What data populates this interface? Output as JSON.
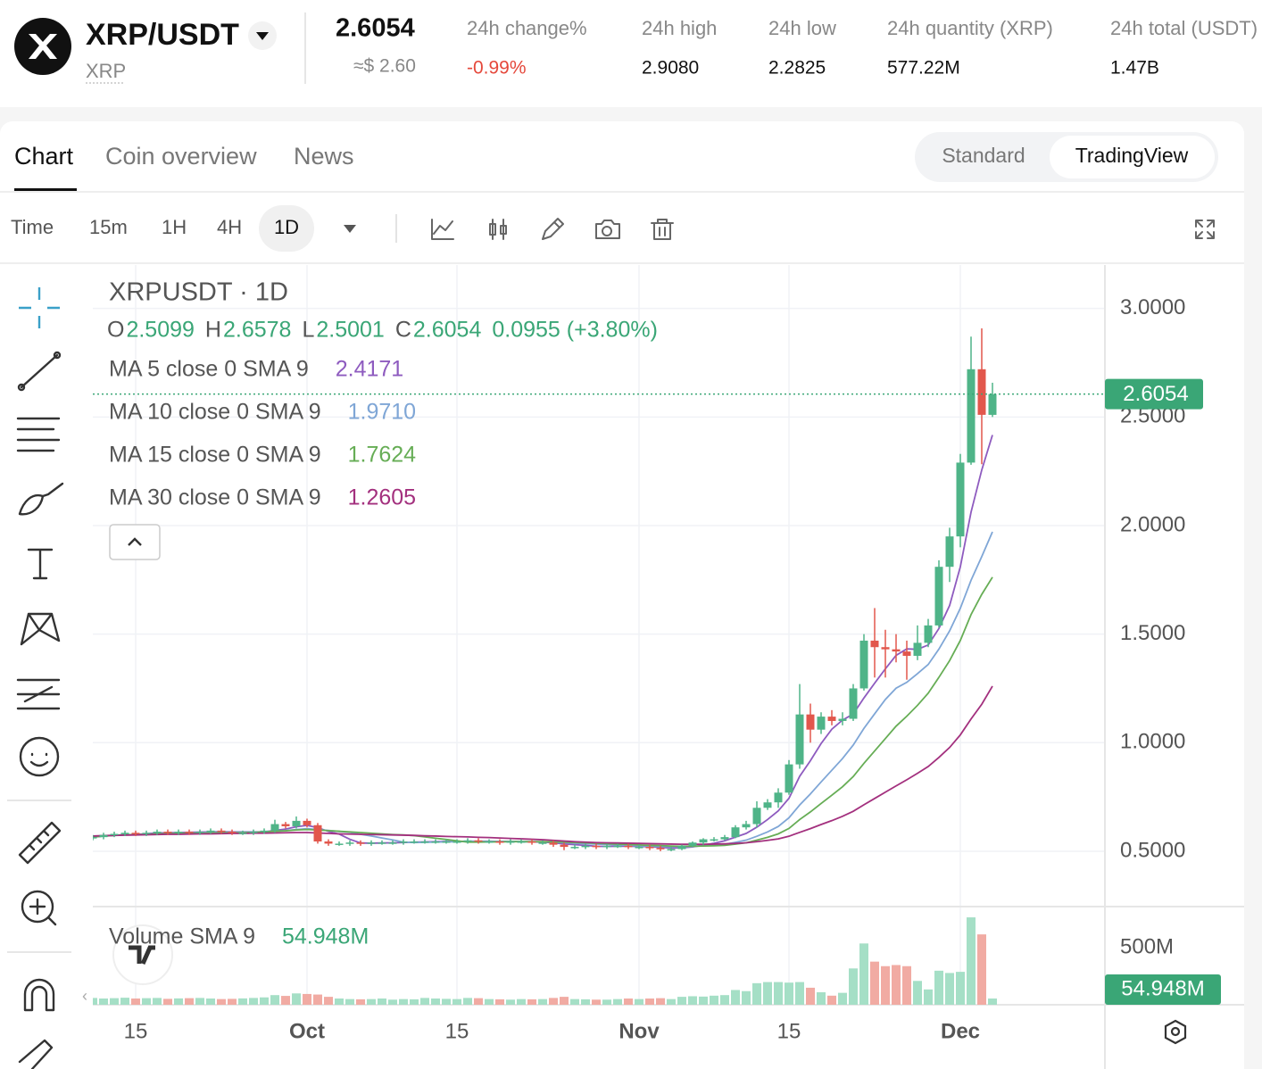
{
  "header": {
    "pair": "XRP/USDT",
    "base": "XRP",
    "price": "2.6054",
    "price_usd": "≈$ 2.60",
    "stats": [
      {
        "label": "24h change%",
        "value": "-0.99%"
      },
      {
        "label": "24h high",
        "value": "2.9080"
      },
      {
        "label": "24h low",
        "value": "2.2825"
      },
      {
        "label": "24h quantity (XRP)",
        "value": "577.22M"
      },
      {
        "label": "24h total (USDT)",
        "value": "1.47B"
      }
    ]
  },
  "tabs": [
    "Chart",
    "Coin overview",
    "News"
  ],
  "modes": [
    "Standard",
    "TradingView"
  ],
  "intervals": [
    "Time",
    "15m",
    "1H",
    "4H",
    "1D"
  ],
  "chart_data": {
    "type": "candlestick",
    "title": "XRPUSDT · 1D",
    "ohlc_letters": [
      "O",
      "H",
      "L",
      "C"
    ],
    "change": "0.0955 (+3.80%)",
    "up_color": "#4fb488",
    "down_color": "#e2574c",
    "categories": [
      null,
      null,
      null,
      null,
      "15",
      null,
      null,
      null,
      null,
      null,
      null,
      null,
      null,
      null,
      null,
      null,
      null,
      null,
      null,
      null,
      "Oct",
      null,
      null,
      null,
      null,
      null,
      null,
      null,
      null,
      null,
      null,
      null,
      null,
      null,
      "15",
      null,
      null,
      null,
      null,
      null,
      null,
      null,
      null,
      null,
      null,
      null,
      null,
      null,
      null,
      null,
      null,
      "Nov",
      null,
      null,
      null,
      null,
      null,
      null,
      null,
      null,
      null,
      null,
      null,
      null,
      null,
      "15",
      null,
      null,
      null,
      null,
      null,
      null,
      null,
      null,
      null,
      null,
      null,
      null,
      null,
      null,
      null,
      "Dec",
      null,
      null,
      null
    ],
    "open": [
      0.56,
      0.565,
      0.575,
      0.58,
      0.585,
      0.58,
      0.585,
      0.59,
      0.585,
      0.59,
      0.585,
      0.59,
      0.595,
      0.59,
      0.585,
      0.585,
      0.59,
      0.595,
      0.625,
      0.615,
      0.64,
      0.62,
      0.545,
      0.535,
      0.535,
      0.54,
      0.535,
      0.54,
      0.54,
      0.54,
      0.545,
      0.545,
      0.545,
      0.545,
      0.545,
      0.545,
      0.55,
      0.545,
      0.545,
      0.54,
      0.545,
      0.545,
      0.54,
      0.54,
      0.53,
      0.52,
      0.52,
      0.525,
      0.52,
      0.525,
      0.525,
      0.52,
      0.52,
      0.515,
      0.51,
      0.51,
      0.525,
      0.54,
      0.555,
      0.555,
      0.565,
      0.61,
      0.625,
      0.7,
      0.725,
      0.77,
      0.9,
      1.13,
      1.06,
      1.12,
      1.1,
      1.11,
      1.25,
      1.47,
      1.44,
      1.43,
      1.42,
      1.4,
      1.46,
      1.54,
      1.81,
      1.95,
      2.29,
      2.72,
      2.5099
    ],
    "high": [
      0.575,
      0.585,
      0.59,
      0.595,
      0.595,
      0.595,
      0.6,
      0.6,
      0.6,
      0.6,
      0.6,
      0.605,
      0.605,
      0.6,
      0.595,
      0.6,
      0.605,
      0.645,
      0.635,
      0.66,
      0.65,
      0.63,
      0.555,
      0.545,
      0.55,
      0.55,
      0.55,
      0.55,
      0.55,
      0.555,
      0.555,
      0.555,
      0.555,
      0.555,
      0.555,
      0.56,
      0.56,
      0.555,
      0.555,
      0.555,
      0.555,
      0.555,
      0.55,
      0.55,
      0.54,
      0.53,
      0.535,
      0.535,
      0.535,
      0.535,
      0.535,
      0.53,
      0.53,
      0.525,
      0.52,
      0.53,
      0.545,
      0.56,
      0.565,
      0.575,
      0.62,
      0.64,
      0.73,
      0.74,
      0.79,
      0.92,
      1.27,
      1.18,
      1.14,
      1.15,
      1.14,
      1.27,
      1.5,
      1.62,
      1.52,
      1.5,
      1.47,
      1.54,
      1.57,
      1.84,
      1.99,
      2.33,
      2.87,
      2.908,
      2.6578
    ],
    "low": [
      0.55,
      0.555,
      0.565,
      0.57,
      0.57,
      0.57,
      0.575,
      0.575,
      0.575,
      0.575,
      0.575,
      0.58,
      0.58,
      0.575,
      0.575,
      0.575,
      0.58,
      0.585,
      0.605,
      0.605,
      0.61,
      0.535,
      0.525,
      0.525,
      0.525,
      0.525,
      0.525,
      0.53,
      0.53,
      0.53,
      0.535,
      0.535,
      0.535,
      0.535,
      0.535,
      0.535,
      0.535,
      0.535,
      0.53,
      0.53,
      0.535,
      0.53,
      0.53,
      0.52,
      0.505,
      0.51,
      0.51,
      0.51,
      0.51,
      0.515,
      0.51,
      0.51,
      0.505,
      0.5,
      0.5,
      0.505,
      0.52,
      0.53,
      0.545,
      0.55,
      0.56,
      0.6,
      0.61,
      0.69,
      0.7,
      0.76,
      0.88,
      1.0,
      1.04,
      1.08,
      1.08,
      1.1,
      1.24,
      1.3,
      1.3,
      1.37,
      1.29,
      1.38,
      1.44,
      1.53,
      1.74,
      1.9,
      2.28,
      2.2825,
      2.5001
    ],
    "close": [
      0.565,
      0.575,
      0.58,
      0.585,
      0.58,
      0.585,
      0.59,
      0.585,
      0.59,
      0.585,
      0.59,
      0.595,
      0.59,
      0.585,
      0.585,
      0.59,
      0.595,
      0.625,
      0.615,
      0.64,
      0.62,
      0.545,
      0.535,
      0.535,
      0.54,
      0.535,
      0.54,
      0.54,
      0.54,
      0.545,
      0.545,
      0.545,
      0.545,
      0.545,
      0.545,
      0.55,
      0.545,
      0.545,
      0.54,
      0.545,
      0.545,
      0.54,
      0.54,
      0.53,
      0.52,
      0.52,
      0.525,
      0.52,
      0.525,
      0.525,
      0.52,
      0.52,
      0.515,
      0.51,
      0.51,
      0.525,
      0.54,
      0.555,
      0.555,
      0.565,
      0.61,
      0.625,
      0.7,
      0.725,
      0.77,
      0.9,
      1.13,
      1.06,
      1.12,
      1.1,
      1.11,
      1.25,
      1.47,
      1.44,
      1.43,
      1.42,
      1.4,
      1.46,
      1.54,
      1.81,
      1.95,
      2.29,
      2.72,
      2.51,
      2.6054
    ],
    "ylim": [
      0.245,
      3.2
    ],
    "yticks": [
      {
        "value": 0.5,
        "label": "0.5000"
      },
      {
        "value": 1,
        "label": "1.0000"
      },
      {
        "value": 1.5,
        "label": "1.5000"
      },
      {
        "value": 2,
        "label": "2.0000"
      },
      {
        "value": 2.5,
        "label": "2.5000"
      },
      {
        "value": 3,
        "label": "3.0000"
      }
    ],
    "grid": true,
    "indicators": [
      {
        "name": "MA 5 close 0 SMA 9",
        "color": "#8e5bbf",
        "current": "2.4171",
        "values": [
          0.565,
          0.57,
          0.573,
          0.576,
          0.577,
          0.581,
          0.584,
          0.585,
          0.586,
          0.587,
          0.588,
          0.589,
          0.59,
          0.589,
          0.589,
          0.589,
          0.589,
          0.596,
          0.602,
          0.613,
          0.619,
          0.609,
          0.591,
          0.579,
          0.555,
          0.538,
          0.537,
          0.538,
          0.539,
          0.54,
          0.542,
          0.543,
          0.544,
          0.545,
          0.545,
          0.546,
          0.546,
          0.546,
          0.545,
          0.545,
          0.544,
          0.543,
          0.542,
          0.539,
          0.534,
          0.53,
          0.527,
          0.523,
          0.522,
          0.523,
          0.523,
          0.522,
          0.521,
          0.518,
          0.515,
          0.516,
          0.52,
          0.528,
          0.537,
          0.548,
          0.565,
          0.582,
          0.611,
          0.646,
          0.686,
          0.744,
          0.845,
          0.917,
          0.996,
          1.062,
          1.104,
          1.132,
          1.206,
          1.274,
          1.34,
          1.402,
          1.432,
          1.43,
          1.45,
          1.526,
          1.632,
          1.81,
          2.062,
          2.256,
          2.4171
        ]
      },
      {
        "name": "MA 10 close 0 SMA 9",
        "color": "#7fa6d6",
        "current": "1.9710",
        "values": [
          0.565,
          0.57,
          0.573,
          0.576,
          0.577,
          0.578,
          0.58,
          0.581,
          0.582,
          0.583,
          0.585,
          0.587,
          0.588,
          0.588,
          0.588,
          0.588,
          0.589,
          0.592,
          0.595,
          0.6,
          0.604,
          0.6,
          0.596,
          0.591,
          0.587,
          0.578,
          0.57,
          0.561,
          0.552,
          0.542,
          0.54,
          0.541,
          0.542,
          0.543,
          0.544,
          0.545,
          0.545,
          0.545,
          0.545,
          0.545,
          0.545,
          0.544,
          0.544,
          0.542,
          0.54,
          0.537,
          0.535,
          0.533,
          0.531,
          0.529,
          0.527,
          0.525,
          0.524,
          0.522,
          0.521,
          0.521,
          0.522,
          0.525,
          0.528,
          0.532,
          0.541,
          0.551,
          0.569,
          0.589,
          0.614,
          0.654,
          0.713,
          0.764,
          0.819,
          0.873,
          0.927,
          0.989,
          1.066,
          1.133,
          1.199,
          1.251,
          1.278,
          1.318,
          1.36,
          1.431,
          1.515,
          1.619,
          1.748,
          1.857,
          1.971
        ]
      },
      {
        "name": "MA 15 close 0 SMA 9",
        "color": "#66ad55",
        "current": "1.7624",
        "values": [
          0.565,
          0.57,
          0.573,
          0.576,
          0.577,
          0.578,
          0.58,
          0.581,
          0.582,
          0.583,
          0.583,
          0.584,
          0.585,
          0.585,
          0.585,
          0.587,
          0.589,
          0.592,
          0.594,
          0.598,
          0.6,
          0.598,
          0.595,
          0.592,
          0.589,
          0.586,
          0.583,
          0.58,
          0.577,
          0.575,
          0.572,
          0.566,
          0.56,
          0.554,
          0.548,
          0.542,
          0.542,
          0.543,
          0.543,
          0.544,
          0.544,
          0.544,
          0.544,
          0.543,
          0.542,
          0.54,
          0.539,
          0.537,
          0.535,
          0.533,
          0.531,
          0.529,
          0.527,
          0.526,
          0.524,
          0.523,
          0.523,
          0.524,
          0.525,
          0.527,
          0.533,
          0.539,
          0.551,
          0.564,
          0.58,
          0.605,
          0.646,
          0.681,
          0.72,
          0.758,
          0.797,
          0.844,
          0.905,
          0.962,
          1.019,
          1.076,
          1.122,
          1.172,
          1.228,
          1.301,
          1.378,
          1.471,
          1.59,
          1.683,
          1.7624
        ]
      },
      {
        "name": "MA 30 close 0 SMA 9",
        "color": "#a3307e",
        "current": "1.2605",
        "values": [
          0.57,
          0.572,
          0.573,
          0.574,
          0.575,
          0.576,
          0.577,
          0.578,
          0.578,
          0.579,
          0.58,
          0.58,
          0.581,
          0.582,
          0.582,
          0.583,
          0.583,
          0.584,
          0.585,
          0.586,
          0.586,
          0.584,
          0.582,
          0.58,
          0.579,
          0.578,
          0.577,
          0.576,
          0.575,
          0.574,
          0.573,
          0.571,
          0.57,
          0.568,
          0.567,
          0.566,
          0.564,
          0.563,
          0.561,
          0.559,
          0.557,
          0.555,
          0.553,
          0.55,
          0.547,
          0.544,
          0.542,
          0.54,
          0.539,
          0.538,
          0.537,
          0.536,
          0.535,
          0.534,
          0.533,
          0.532,
          0.532,
          0.532,
          0.533,
          0.534,
          0.536,
          0.539,
          0.544,
          0.55,
          0.557,
          0.569,
          0.587,
          0.604,
          0.623,
          0.641,
          0.661,
          0.684,
          0.714,
          0.743,
          0.772,
          0.801,
          0.829,
          0.859,
          0.89,
          0.932,
          0.978,
          1.036,
          1.109,
          1.177,
          1.2605
        ]
      }
    ],
    "volume": {
      "name": "Volume SMA 9",
      "current": "54.948M",
      "up_color": "#a5dfc6",
      "down_color": "#f1aba3",
      "ylim": [
        0,
        857
      ],
      "yticks": [
        {
          "value": 500,
          "label": "500M"
        }
      ],
      "values": [
        60,
        55,
        58,
        62,
        55,
        58,
        60,
        52,
        56,
        58,
        60,
        55,
        50,
        52,
        56,
        60,
        65,
        85,
        78,
        100,
        95,
        90,
        70,
        55,
        50,
        48,
        50,
        55,
        45,
        50,
        48,
        60,
        55,
        52,
        50,
        60,
        58,
        50,
        48,
        45,
        50,
        48,
        50,
        60,
        70,
        50,
        48,
        45,
        45,
        50,
        55,
        50,
        55,
        58,
        50,
        70,
        75,
        72,
        80,
        85,
        130,
        120,
        190,
        200,
        200,
        195,
        200,
        150,
        110,
        80,
        105,
        320,
        540,
        380,
        340,
        350,
        340,
        210,
        135,
        300,
        280,
        290,
        770,
        620,
        54.948
      ]
    }
  }
}
